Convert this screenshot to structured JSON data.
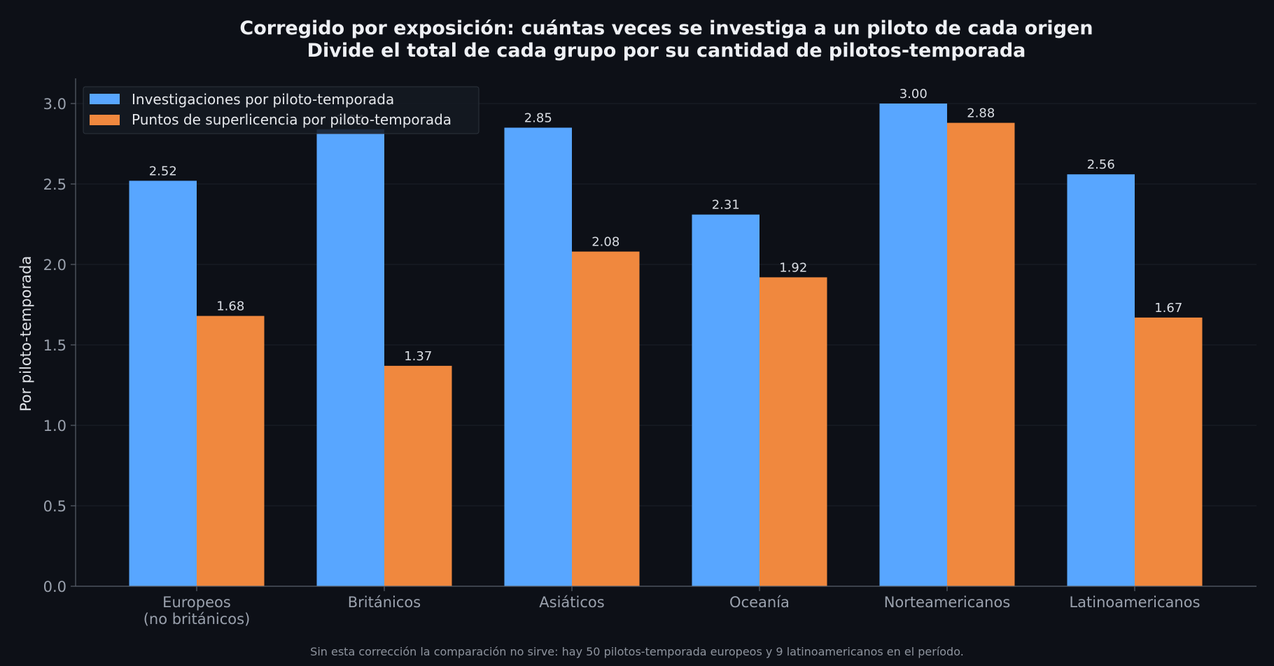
{
  "chart_data": {
    "type": "bar",
    "title_lines": [
      "Corregido por exposición: cuántas veces se investiga a un piloto de cada origen",
      "Divide el total de cada grupo por su cantidad de pilotos-temporada"
    ],
    "ylabel": "Por piloto-temporada",
    "xlabel": "",
    "ylim": [
      0,
      3.15
    ],
    "yticks": [
      "0.0",
      "0.5",
      "1.0",
      "1.5",
      "2.0",
      "2.5",
      "3.0"
    ],
    "categories": [
      [
        "Europeos",
        "(no británicos)"
      ],
      [
        "Británicos"
      ],
      [
        "Asiáticos"
      ],
      [
        "Oceanía"
      ],
      [
        "Norteamericanos"
      ],
      [
        "Latinoamericanos"
      ]
    ],
    "series": [
      {
        "name": "Investigaciones por piloto-temporada",
        "color": "#58a6ff",
        "values": [
          2.52,
          2.84,
          2.85,
          2.31,
          3.0,
          2.56
        ],
        "labels": [
          "2.52",
          "2.84",
          "2.85",
          "2.31",
          "3.00",
          "2.56"
        ]
      },
      {
        "name": "Puntos de superlicencia por piloto-temporada",
        "color": "#f0883e",
        "values": [
          1.68,
          1.37,
          2.08,
          1.92,
          2.88,
          1.67
        ],
        "labels": [
          "1.68",
          "1.37",
          "2.08",
          "1.92",
          "2.88",
          "1.67"
        ]
      }
    ],
    "grid": true,
    "legend_position": "top-left",
    "footnote": "Sin esta corrección la comparación no sirve: hay 50 pilotos-temporada europeos y 9 latinoamericanos en el período."
  }
}
